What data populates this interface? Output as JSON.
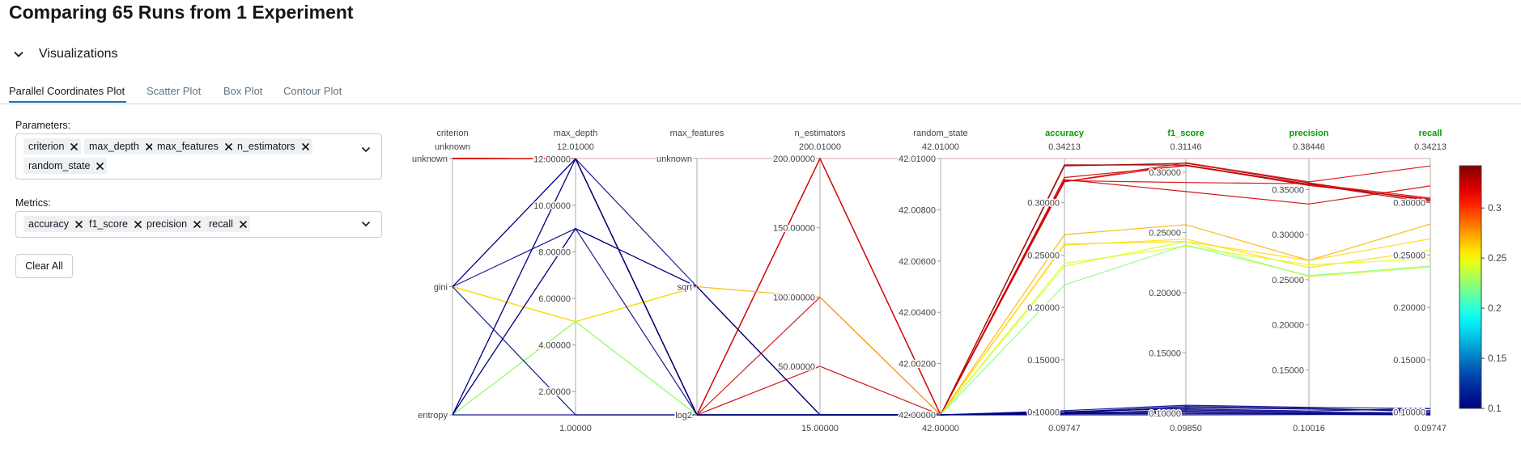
{
  "page": {
    "title": "Comparing 65 Runs from 1 Experiment",
    "section_label": "Visualizations"
  },
  "tabs": [
    {
      "label": "Parallel Coordinates Plot",
      "active": true
    },
    {
      "label": "Scatter Plot",
      "active": false
    },
    {
      "label": "Box Plot",
      "active": false
    },
    {
      "label": "Contour Plot",
      "active": false
    }
  ],
  "params": {
    "label": "Parameters:",
    "chips": [
      "criterion",
      "max_depth",
      "max_features",
      "n_estimators",
      "random_state"
    ]
  },
  "metrics": {
    "label": "Metrics:",
    "chips": [
      "accuracy",
      "f1_score",
      "precision",
      "recall"
    ]
  },
  "clear_button": "Clear All",
  "colors": {
    "accent": "#2272b4",
    "metric_label": "#00a000",
    "axis": "#c7c7c7"
  },
  "chart_data": {
    "type": "parallel_coordinates",
    "dimensions": [
      {
        "name": "criterion",
        "metric": false,
        "top": "unknown",
        "bottom": "",
        "ticks": [
          {
            "v": 0,
            "label": "entropy"
          },
          {
            "v": 1,
            "label": "gini"
          },
          {
            "v": 2,
            "label": "unknown"
          }
        ],
        "range": [
          0,
          2
        ]
      },
      {
        "name": "max_depth",
        "metric": false,
        "top": "12.01000",
        "bottom": "1.00000",
        "range": [
          1.0,
          12.01
        ],
        "ticks": [
          {
            "v": 2,
            "label": "2.00000"
          },
          {
            "v": 4,
            "label": "4.00000"
          },
          {
            "v": 6,
            "label": "6.00000"
          },
          {
            "v": 8,
            "label": "8.00000"
          },
          {
            "v": 10,
            "label": "10.00000"
          },
          {
            "v": 12,
            "label": "12.00000"
          }
        ]
      },
      {
        "name": "max_features",
        "metric": false,
        "top": "",
        "bottom": "",
        "range": [
          0,
          2
        ],
        "ticks": [
          {
            "v": 0,
            "label": "log2"
          },
          {
            "v": 1,
            "label": "sqrt"
          },
          {
            "v": 2,
            "label": "unknown"
          }
        ]
      },
      {
        "name": "n_estimators",
        "metric": false,
        "top": "200.01000",
        "bottom": "15.00000",
        "range": [
          15,
          200.01
        ],
        "ticks": [
          {
            "v": 50,
            "label": "50.00000"
          },
          {
            "v": 100,
            "label": "100.00000"
          },
          {
            "v": 150,
            "label": "150.00000"
          },
          {
            "v": 200,
            "label": "200.00000"
          }
        ]
      },
      {
        "name": "random_state",
        "metric": false,
        "top": "42.01000",
        "bottom": "42.00000",
        "range": [
          42.0,
          42.01
        ],
        "ticks": [
          {
            "v": 42.0,
            "label": "42.00000"
          },
          {
            "v": 42.002,
            "label": "42.00200"
          },
          {
            "v": 42.004,
            "label": "42.00400"
          },
          {
            "v": 42.006,
            "label": "42.00600"
          },
          {
            "v": 42.008,
            "label": "42.00800"
          },
          {
            "v": 42.01,
            "label": "42.01000"
          }
        ]
      },
      {
        "name": "accuracy",
        "metric": true,
        "top": "0.34213",
        "bottom": "0.09747",
        "range": [
          0.09747,
          0.34213
        ],
        "ticks": [
          {
            "v": 0.1,
            "label": "0.10000"
          },
          {
            "v": 0.15,
            "label": "0.15000"
          },
          {
            "v": 0.2,
            "label": "0.20000"
          },
          {
            "v": 0.25,
            "label": "0.25000"
          },
          {
            "v": 0.3,
            "label": "0.30000"
          }
        ]
      },
      {
        "name": "f1_score",
        "metric": true,
        "top": "0.31146",
        "bottom": "0.09850",
        "range": [
          0.0985,
          0.31146
        ],
        "ticks": [
          {
            "v": 0.1,
            "label": "0.10000"
          },
          {
            "v": 0.15,
            "label": "0.15000"
          },
          {
            "v": 0.2,
            "label": "0.20000"
          },
          {
            "v": 0.25,
            "label": "0.25000"
          },
          {
            "v": 0.3,
            "label": "0.30000"
          }
        ]
      },
      {
        "name": "precision",
        "metric": true,
        "top": "0.38446",
        "bottom": "0.10016",
        "range": [
          0.10016,
          0.38446
        ],
        "ticks": [
          {
            "v": 0.15,
            "label": "0.15000"
          },
          {
            "v": 0.2,
            "label": "0.20000"
          },
          {
            "v": 0.25,
            "label": "0.25000"
          },
          {
            "v": 0.3,
            "label": "0.30000"
          },
          {
            "v": 0.35,
            "label": "0.35000"
          }
        ]
      },
      {
        "name": "recall",
        "metric": true,
        "top": "0.34213",
        "bottom": "0.09747",
        "range": [
          0.09747,
          0.34213
        ],
        "ticks": [
          {
            "v": 0.1,
            "label": "0.10000"
          },
          {
            "v": 0.15,
            "label": "0.15000"
          },
          {
            "v": 0.2,
            "label": "0.20000"
          },
          {
            "v": 0.25,
            "label": "0.25000"
          },
          {
            "v": 0.3,
            "label": "0.30000"
          }
        ]
      }
    ],
    "lines": [
      [
        2,
        12.0,
        0,
        200,
        42.0,
        0.336,
        0.306,
        0.356,
        0.3
      ],
      [
        2,
        12.0,
        0,
        200,
        42.0,
        0.335,
        0.3075,
        0.3575,
        0.3015
      ],
      [
        2,
        12.0,
        0,
        100,
        42.0,
        0.322,
        0.284,
        0.334,
        0.316
      ],
      [
        2,
        12.0,
        0,
        50,
        42.0,
        0.324,
        0.3055,
        0.3555,
        0.3025
      ],
      [
        2,
        12.0,
        0,
        200,
        42.0,
        0.32,
        0.306,
        0.3545,
        0.3035
      ],
      [
        2,
        12.0,
        0,
        15,
        42.0,
        0.32,
        0.308,
        0.3585,
        0.335
      ],
      [
        2,
        12.0,
        0,
        200,
        42.0,
        0.321,
        0.2915,
        0.3565,
        0.3045
      ],
      [
        1,
        5.0,
        1,
        100,
        42.0,
        0.2695,
        0.2565,
        0.2715,
        0.2795
      ],
      [
        1,
        5.0,
        1,
        15,
        42.0,
        0.2605,
        0.2425,
        0.2715,
        0.2655
      ],
      [
        1,
        5.0,
        1,
        15,
        42.0,
        0.2595,
        0.2445,
        0.2635,
        0.2545
      ],
      [
        0,
        5.0,
        0,
        15,
        42.0,
        0.242,
        0.2385,
        0.2665,
        0.2465
      ],
      [
        0,
        5.0,
        0,
        15,
        42.0,
        0.2395,
        0.2425,
        0.2535,
        0.2385
      ],
      [
        0,
        5.0,
        0,
        15,
        42.0,
        0.2215,
        0.2395,
        0.2545,
        0.2395
      ],
      [
        1,
        12.0,
        1,
        15,
        42.0,
        0.1015,
        0.1065,
        0.1085,
        0.1035
      ],
      [
        1,
        12.0,
        0,
        15,
        42.0,
        0.0995,
        0.1045,
        0.1065,
        0.1015
      ],
      [
        0,
        12.0,
        0,
        15,
        42.0,
        0.1005,
        0.1035,
        0.1045,
        0.1035
      ],
      [
        0,
        9.0,
        1,
        15,
        42.0,
        0.1,
        0.1055,
        0.1075,
        0.1005
      ],
      [
        0,
        9.0,
        1,
        15,
        42.0,
        0.0985,
        0.1025,
        0.1035,
        0.0995
      ],
      [
        1,
        9.0,
        0,
        15,
        42.0,
        0.0995,
        0.1015,
        0.1025,
        0.0985
      ],
      [
        0,
        12.0,
        0,
        15,
        42.0,
        0.0985,
        0.1005,
        0.1015,
        0.0985
      ],
      [
        1,
        1.0,
        0,
        15,
        42.0,
        0.0985,
        0.0995,
        0.1015,
        0.0975
      ],
      [
        0,
        1.0,
        0,
        15,
        42.0,
        0.0975,
        0.0985,
        0.1005,
        0.0975
      ]
    ],
    "colorbar": {
      "min": 0.1,
      "max": 0.34213,
      "ticks": [
        0.1,
        0.15,
        0.2,
        0.25,
        0.3
      ],
      "tick_labels": [
        "0.1",
        "0.15",
        "0.2",
        "0.25",
        "0.3"
      ]
    }
  }
}
